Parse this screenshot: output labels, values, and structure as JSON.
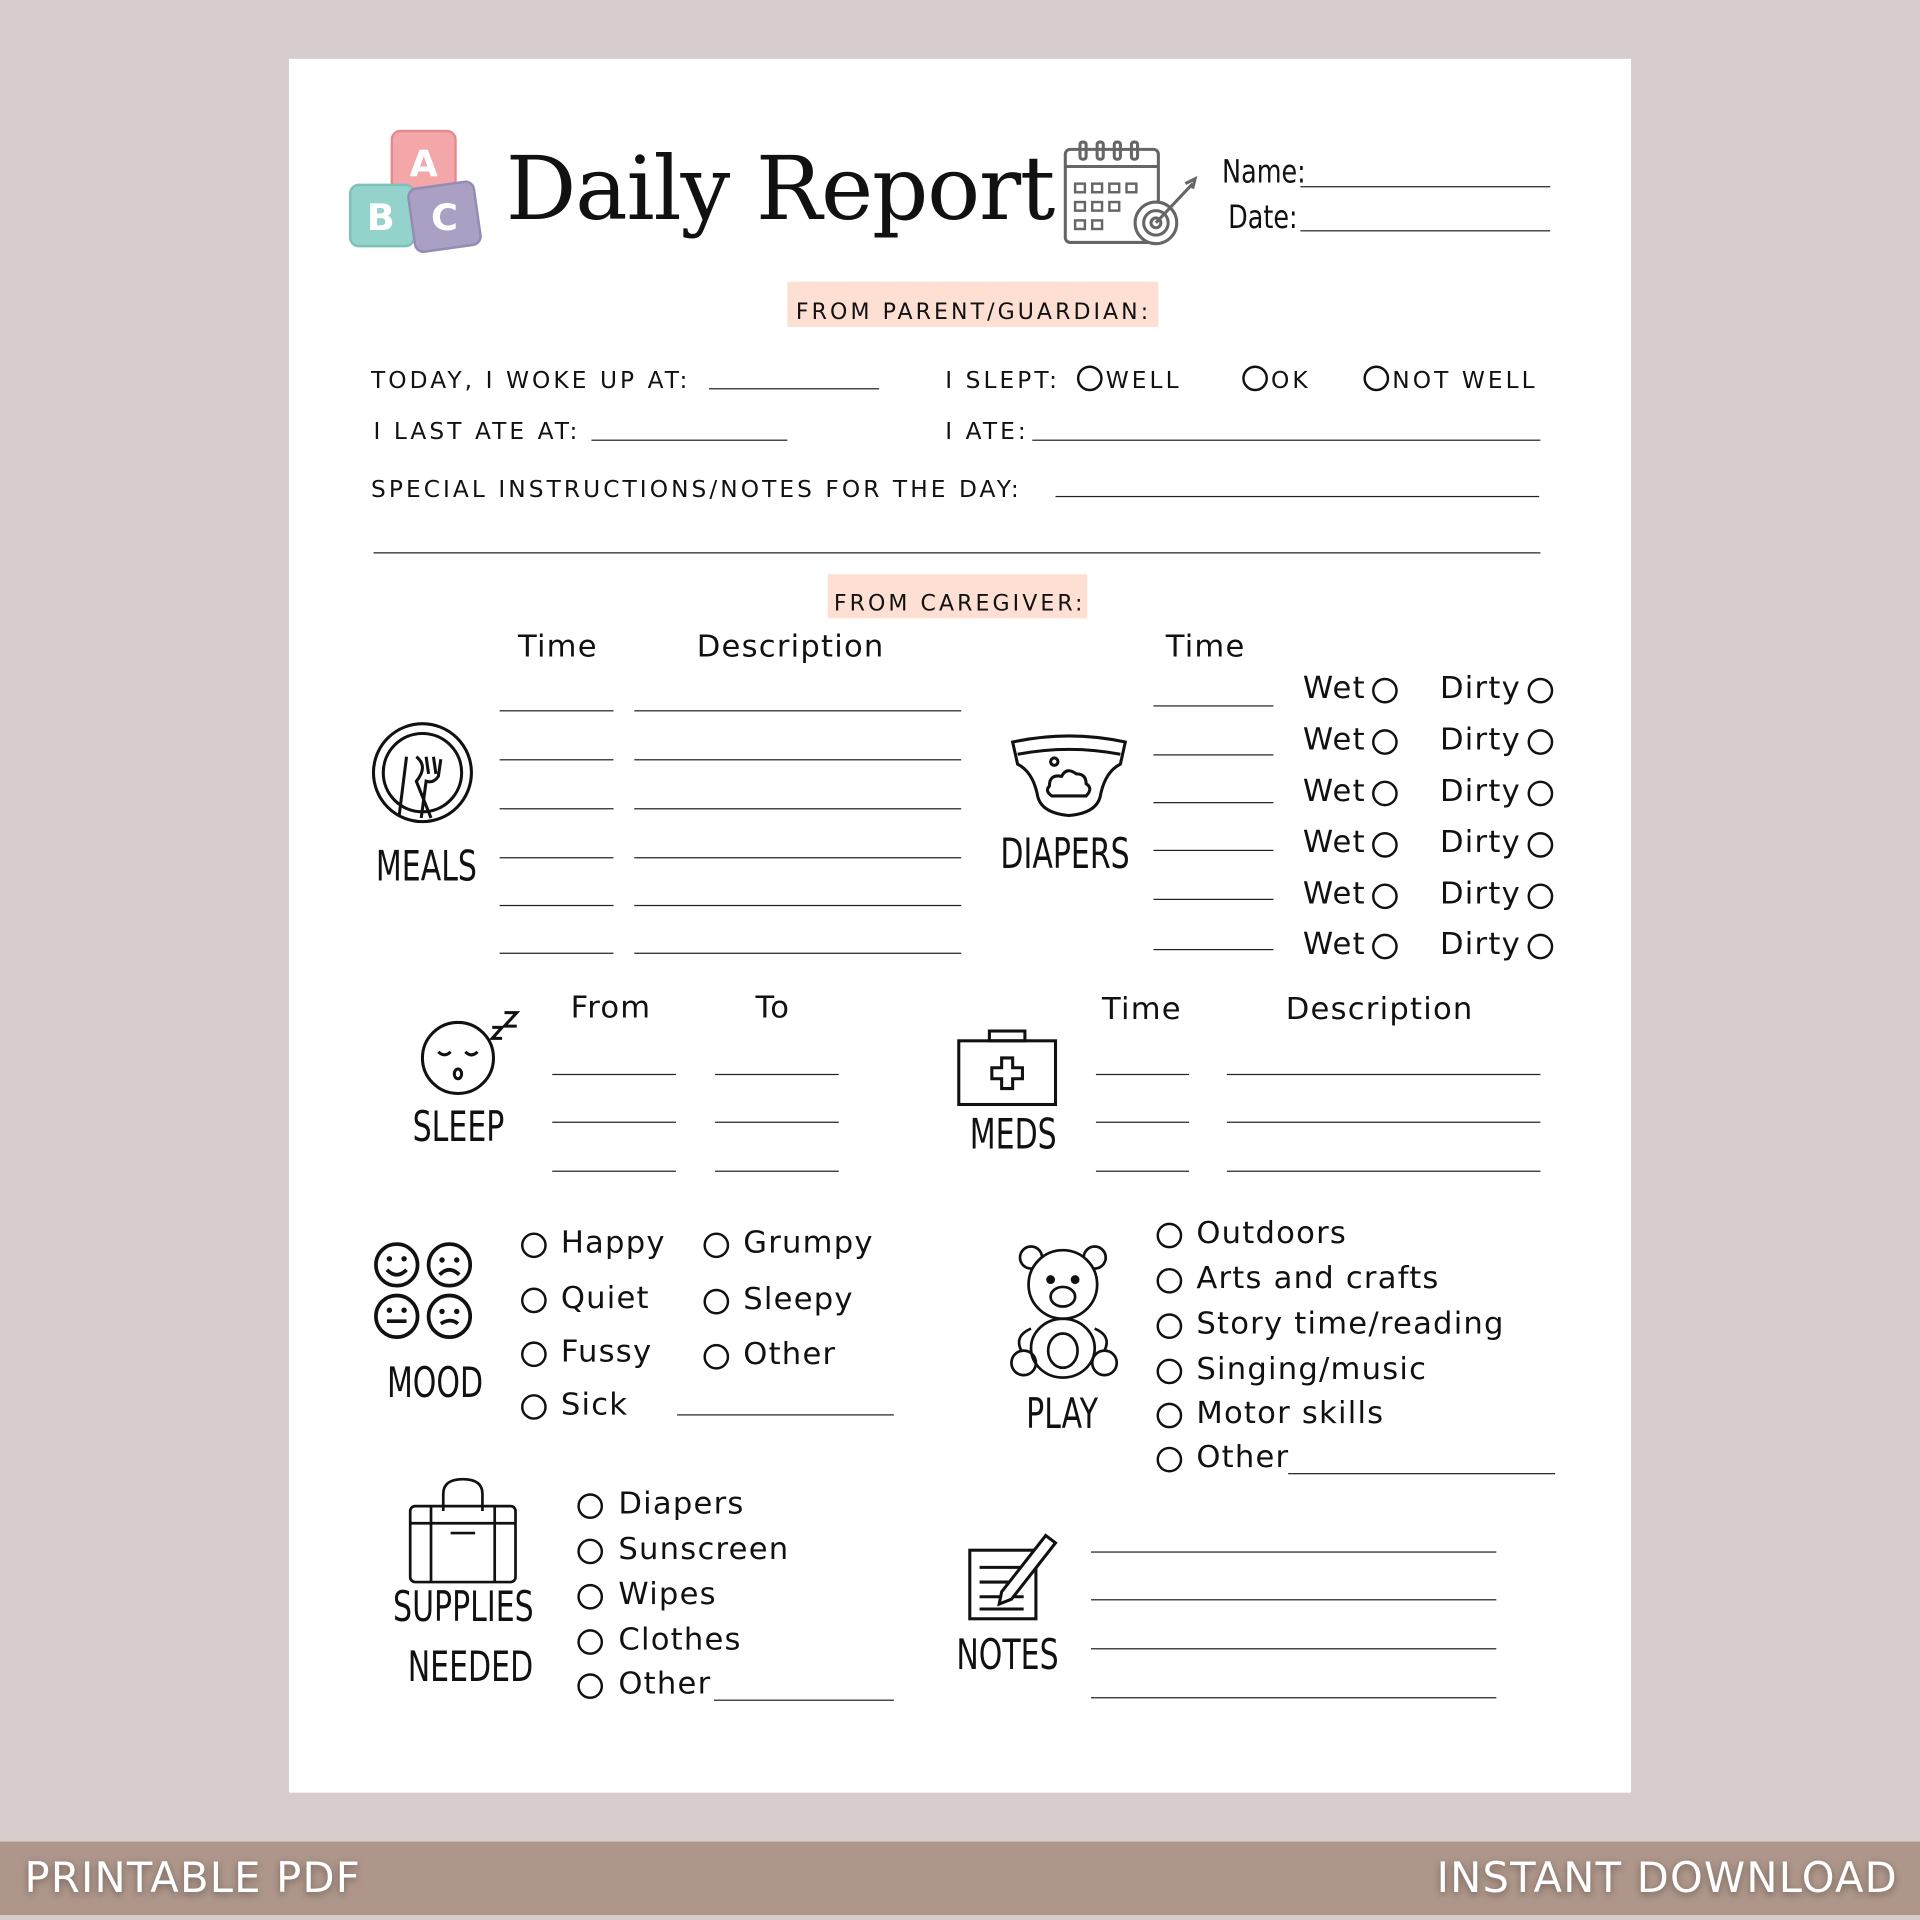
{
  "header": {
    "title": "Daily Report",
    "name_label": "Name:",
    "date_label": "Date:",
    "blocks": [
      "A",
      "B",
      "C"
    ]
  },
  "parent": {
    "heading": "FROM PARENT/GUARDIAN:",
    "woke_label": "TODAY, I WOKE UP AT:",
    "slept_label": "I SLEPT:",
    "slept_options": [
      "WELL",
      "OK",
      "NOT WELL"
    ],
    "last_ate_label": "I LAST ATE AT:",
    "ate_label": "I ATE:",
    "notes_label": "SPECIAL INSTRUCTIONS/NOTES FOR THE DAY:"
  },
  "caregiver": {
    "heading": "FROM CAREGIVER:",
    "meals": {
      "label": "MEALS",
      "time_header": "Time",
      "desc_header": "Description"
    },
    "diapers": {
      "label": "DIAPERS",
      "time_header": "Time",
      "wet": "Wet",
      "dirty": "Dirty"
    },
    "sleep": {
      "label": "SLEEP",
      "from_header": "From",
      "to_header": "To"
    },
    "meds": {
      "label": "MEDS",
      "time_header": "Time",
      "desc_header": "Description"
    },
    "mood": {
      "label": "MOOD",
      "options": [
        "Happy",
        "Quiet",
        "Fussy",
        "Sick",
        "Grumpy",
        "Sleepy",
        "Other"
      ]
    },
    "play": {
      "label": "PLAY",
      "options": [
        "Outdoors",
        "Arts and crafts",
        "Story time/reading",
        "Singing/music",
        "Motor skills",
        "Other"
      ]
    },
    "supplies": {
      "label_1": "SUPPLIES",
      "label_2": "NEEDED",
      "options": [
        "Diapers",
        "Sunscreen",
        "Wipes",
        "Clothes",
        "Other"
      ]
    },
    "notes": {
      "label": "NOTES"
    }
  },
  "banner": {
    "left": "PRINTABLE PDF",
    "right": "INSTANT DOWNLOAD"
  },
  "colors": {
    "band": "#fde0d3",
    "block_a": "#f4a7a9",
    "block_b": "#93d3cc",
    "block_c": "#aaa0c4",
    "banner": "#ae968a",
    "background": "#d6cdcc"
  }
}
